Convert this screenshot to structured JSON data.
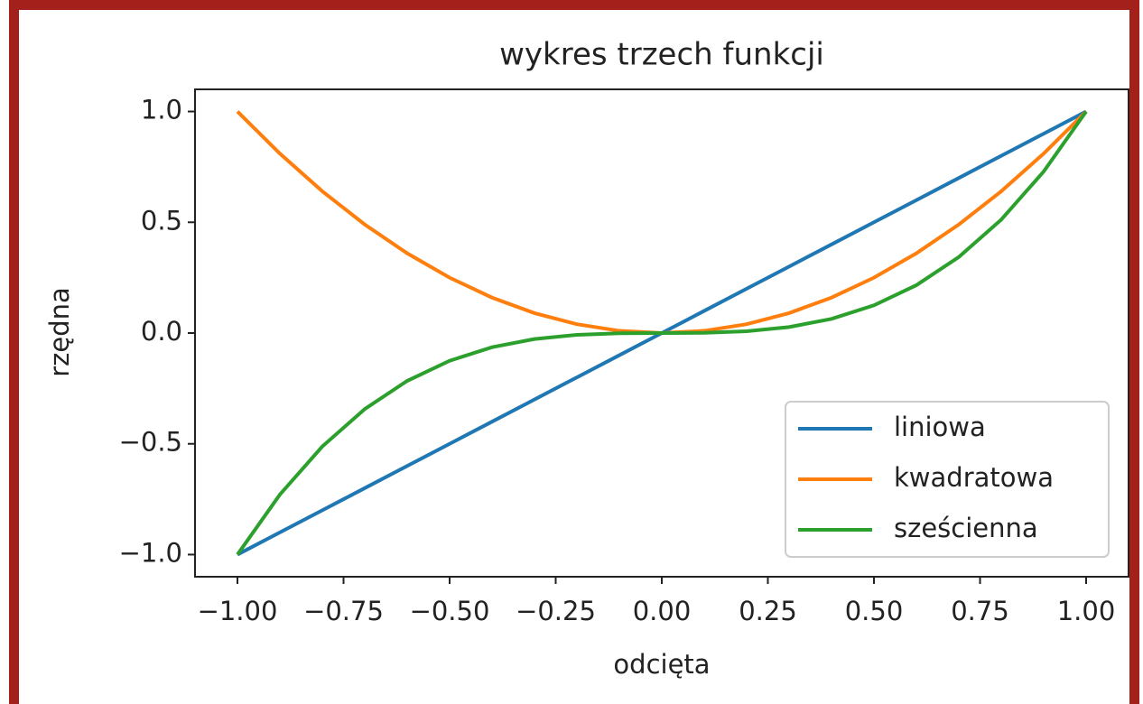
{
  "chart_data": {
    "type": "line",
    "title": "wykres trzech funkcji",
    "x_label": "odcięta",
    "y_label": "rzędna",
    "x": [
      -1.0,
      -0.9,
      -0.8,
      -0.7,
      -0.6,
      -0.5,
      -0.4,
      -0.3,
      -0.2,
      -0.1,
      0.0,
      0.1,
      0.2,
      0.3,
      0.4,
      0.5,
      0.6,
      0.7,
      0.8,
      0.9,
      1.0
    ],
    "series": [
      {
        "name": "liniowa",
        "color": "#1f77b4",
        "values": [
          -1.0,
          -0.9,
          -0.8,
          -0.7,
          -0.6,
          -0.5,
          -0.4,
          -0.3,
          -0.2,
          -0.1,
          0.0,
          0.1,
          0.2,
          0.3,
          0.4,
          0.5,
          0.6,
          0.7,
          0.8,
          0.9,
          1.0
        ]
      },
      {
        "name": "kwadratowa",
        "color": "#ff7f0e",
        "values": [
          1.0,
          0.81,
          0.64,
          0.49,
          0.36,
          0.25,
          0.16,
          0.09,
          0.04,
          0.01,
          0.0,
          0.01,
          0.04,
          0.09,
          0.16,
          0.25,
          0.36,
          0.49,
          0.64,
          0.81,
          1.0
        ]
      },
      {
        "name": "sześcienna",
        "color": "#2ca02c",
        "values": [
          -1.0,
          -0.729,
          -0.512,
          -0.343,
          -0.216,
          -0.125,
          -0.064,
          -0.027,
          -0.008,
          -0.001,
          0.0,
          0.001,
          0.008,
          0.027,
          0.064,
          0.125,
          0.216,
          0.343,
          0.512,
          0.729,
          1.0
        ]
      }
    ],
    "xlim": [
      -1.1,
      1.1
    ],
    "ylim": [
      -1.1,
      1.1
    ],
    "xticks": [
      {
        "value": -1.0,
        "label": "−1.00"
      },
      {
        "value": -0.75,
        "label": "−0.75"
      },
      {
        "value": -0.5,
        "label": "−0.50"
      },
      {
        "value": -0.25,
        "label": "−0.25"
      },
      {
        "value": 0.0,
        "label": "0.00"
      },
      {
        "value": 0.25,
        "label": "0.25"
      },
      {
        "value": 0.5,
        "label": "0.50"
      },
      {
        "value": 0.75,
        "label": "0.75"
      },
      {
        "value": 1.0,
        "label": "1.00"
      }
    ],
    "yticks": [
      {
        "value": -1.0,
        "label": "−1.0"
      },
      {
        "value": -0.5,
        "label": "−0.5"
      },
      {
        "value": 0.0,
        "label": "0.0"
      },
      {
        "value": 0.5,
        "label": "0.5"
      },
      {
        "value": 1.0,
        "label": "1.0"
      }
    ],
    "grid": false,
    "legend": "lower right"
  }
}
